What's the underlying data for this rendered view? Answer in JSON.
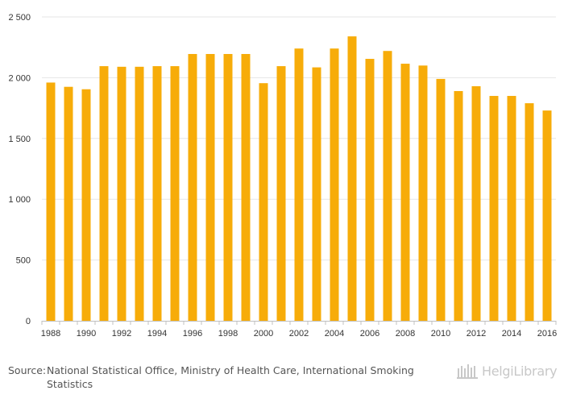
{
  "chart_data": {
    "type": "bar",
    "categories": [
      "1988",
      "1989",
      "1990",
      "1991",
      "1992",
      "1993",
      "1994",
      "1995",
      "1996",
      "1997",
      "1998",
      "1999",
      "2000",
      "2001",
      "2002",
      "2003",
      "2004",
      "2005",
      "2006",
      "2007",
      "2008",
      "2009",
      "2010",
      "2011",
      "2012",
      "2013",
      "2014",
      "2015",
      "2016"
    ],
    "values": [
      1960,
      1925,
      1905,
      2095,
      2090,
      2090,
      2095,
      2095,
      2195,
      2195,
      2195,
      2195,
      1955,
      2095,
      2240,
      2085,
      2240,
      2340,
      2155,
      2220,
      2115,
      2100,
      1990,
      1890,
      1930,
      1850,
      1850,
      1790,
      1730
    ],
    "ylim": [
      0,
      2500
    ],
    "y_ticks": [
      0,
      500,
      1000,
      1500,
      2000,
      2500
    ],
    "y_tick_labels": [
      "0",
      "500",
      "1 000",
      "1 500",
      "2 000",
      "2 500"
    ],
    "x_tick_labels": [
      "1988",
      "1990",
      "1992",
      "1994",
      "1996",
      "1998",
      "2000",
      "2002",
      "2004",
      "2006",
      "2008",
      "2010",
      "2012",
      "2014",
      "2016"
    ],
    "grid": true,
    "bar_color": "#f7ac09",
    "grid_color": "#e6e6e6",
    "axis_color": "#c0c0c0"
  },
  "footer": {
    "source_label": "Source:",
    "source_text": "National Statistical Office, Ministry of Health Care, International Smoking Statistics"
  },
  "brand": {
    "name": "HelgiLibrary",
    "icon": "library-building-icon"
  }
}
